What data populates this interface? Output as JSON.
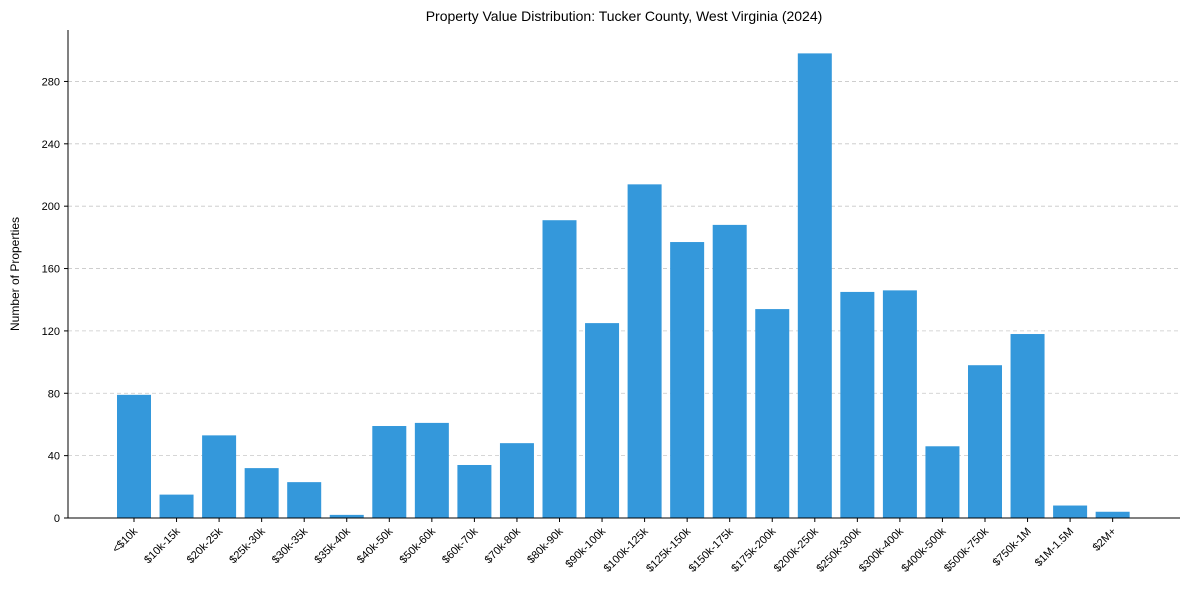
{
  "chart_data": {
    "type": "bar",
    "title": "Property Value Distribution: Tucker County, West Virginia (2024)",
    "xlabel": "",
    "ylabel": "Number of Properties",
    "categories": [
      "<$10k",
      "$10k-15k",
      "$20k-25k",
      "$25k-30k",
      "$30k-35k",
      "$35k-40k",
      "$40k-50k",
      "$50k-60k",
      "$60k-70k",
      "$70k-80k",
      "$80k-90k",
      "$90k-100k",
      "$100k-125k",
      "$125k-150k",
      "$150k-175k",
      "$175k-200k",
      "$200k-250k",
      "$250k-300k",
      "$300k-400k",
      "$400k-500k",
      "$500k-750k",
      "$750k-1M",
      "$1M-1.5M",
      "$2M+"
    ],
    "values": [
      79,
      15,
      53,
      32,
      23,
      2,
      59,
      61,
      34,
      48,
      191,
      125,
      214,
      177,
      188,
      134,
      298,
      145,
      146,
      46,
      98,
      118,
      8,
      4
    ],
    "ylim": [
      0,
      313
    ],
    "yticks": [
      0,
      40,
      80,
      120,
      160,
      200,
      240,
      280
    ],
    "grid": true,
    "bar_color": "#3498db"
  }
}
